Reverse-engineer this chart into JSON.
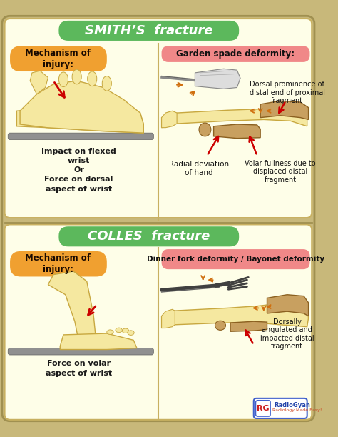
{
  "title_smith": "SMITH’S  fracture",
  "title_colles": "COLLES  fracture",
  "outer_bg": "#c8b87a",
  "panel_bg": "#fefee8",
  "title_smith_bg": "#5cb85c",
  "title_colles_bg": "#5cb85c",
  "moi_bg": "#f0a030",
  "garden_spade_bg": "#f08888",
  "dinner_fork_bg": "#f08888",
  "skin_color": "#f5e8a0",
  "skin_edge": "#c8a840",
  "bone_color": "#c8a060",
  "bone_edge": "#8b6020",
  "arrow_red": "#cc0000",
  "arrow_orange": "#d07010",
  "table_color": "#909090",
  "smith_moi_text": "Mechanism of\ninjury:",
  "smith_injury_desc": "Impact on flexed\nwrist\nOr\nForce on dorsal\naspect of wrist",
  "smith_deformity_label": "Garden spade deformity:",
  "smith_dorsal_text": "Dorsal prominence of\ndistal end of proximal\nfragment",
  "smith_radial_text": "Radial deviation\nof hand",
  "smith_volar_text": "Volar fullness due to\ndisplaced distal\nfragment",
  "colles_moi_text": "Mechanism of\ninjury:",
  "colles_injury_desc": "Force on volar\naspect of wrist",
  "colles_deformity_label": "Dinner fork deformity / Bayonet deformity",
  "colles_dorsally_text": "Dorsally\nangulated and\nimpacted distal\nfragment"
}
